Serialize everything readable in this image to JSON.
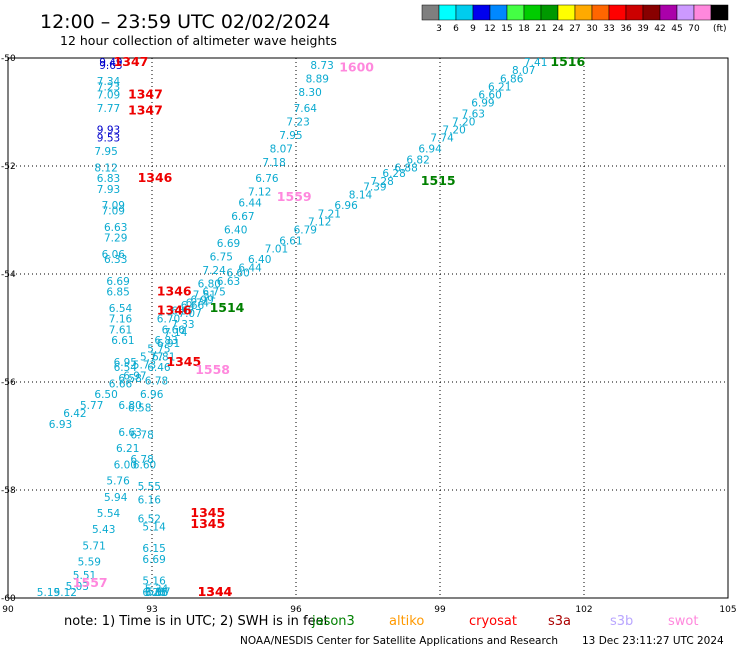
{
  "title": "12:00 – 23:59 UTC 02/02/2024",
  "subtitle": "12 hour collection of altimeter wave heights",
  "colorbar": {
    "unit": "(ft)",
    "colors": [
      "#7f7f7f",
      "#00ffff",
      "#00ccee",
      "#0000ee",
      "#0088ff",
      "#44ff44",
      "#00cc00",
      "#009900",
      "#ffff00",
      "#ffaa00",
      "#ff6600",
      "#ff0000",
      "#cc0000",
      "#880000",
      "#aa00aa",
      "#cc99ff",
      "#ff88dd",
      "#000000"
    ],
    "labels": [
      "3",
      "6",
      "9",
      "12",
      "15",
      "18",
      "21",
      "24",
      "27",
      "30",
      "33",
      "36",
      "39",
      "42",
      "45",
      "70"
    ]
  },
  "note": {
    "text": "note:  1) Time is in UTC;  2) SWH is in feet",
    "missions": [
      {
        "name": "jason3",
        "color": "#008000"
      },
      {
        "name": "altiko",
        "color": "#ff9900"
      },
      {
        "name": "cryosat",
        "color": "#ff0000"
      },
      {
        "name": "s3a",
        "color": "#aa0000"
      },
      {
        "name": "s3b",
        "color": "#b9a6ff"
      },
      {
        "name": "swot",
        "color": "#ff88dd"
      }
    ]
  },
  "footer": {
    "credit": "NOAA/NESDIS Center for Satellite Applications and Research",
    "timestamp": "13 Dec 23:11:27 UTC 2024"
  },
  "chart_data": {
    "type": "scatter",
    "xlim": [
      90,
      105
    ],
    "ylim": [
      -60,
      -50
    ],
    "x_ticks": [
      90,
      93,
      96,
      99,
      102,
      105
    ],
    "y_ticks": [
      -50,
      -52,
      -54,
      -56,
      -58,
      -60
    ],
    "grid": true,
    "tracks": [
      {
        "mission": "cryosat",
        "color": "#0aaad0",
        "labels": [
          {
            "lon": 91.9,
            "lat": -50.1,
            "text": "9.49",
            "color": "#0000cc"
          },
          {
            "lon": 91.9,
            "lat": -50.2,
            "text": "9.63",
            "color": "#0000cc"
          },
          {
            "lon": 91.85,
            "lat": -50.5,
            "text": "7.34"
          },
          {
            "lon": 91.85,
            "lat": -50.6,
            "text": "7.23"
          },
          {
            "lon": 91.85,
            "lat": -50.75,
            "text": "7.09"
          },
          {
            "lon": 91.85,
            "lat": -51.0,
            "text": "7.77"
          },
          {
            "lon": 91.85,
            "lat": -51.4,
            "text": "9.93",
            "color": "#0000cc"
          },
          {
            "lon": 91.85,
            "lat": -51.55,
            "text": "9.53",
            "color": "#0000cc"
          },
          {
            "lon": 91.8,
            "lat": -51.8,
            "text": "7.95"
          },
          {
            "lon": 91.8,
            "lat": -52.1,
            "text": "8.12"
          },
          {
            "lon": 91.85,
            "lat": -52.3,
            "text": "6.83"
          },
          {
            "lon": 91.85,
            "lat": -52.5,
            "text": "7.93"
          },
          {
            "lon": 91.95,
            "lat": -52.8,
            "text": "7.09"
          },
          {
            "lon": 91.95,
            "lat": -52.9,
            "text": "7.09"
          },
          {
            "lon": 92.0,
            "lat": -53.2,
            "text": "6.63"
          },
          {
            "lon": 92.0,
            "lat": -53.4,
            "text": "7.29"
          },
          {
            "lon": 91.95,
            "lat": -53.7,
            "text": "6.06"
          },
          {
            "lon": 92.0,
            "lat": -53.8,
            "text": "6.33"
          },
          {
            "lon": 92.05,
            "lat": -54.2,
            "text": "6.69"
          },
          {
            "lon": 92.05,
            "lat": -54.4,
            "text": "6.85"
          },
          {
            "lon": 92.1,
            "lat": -54.7,
            "text": "6.54"
          },
          {
            "lon": 92.1,
            "lat": -54.9,
            "text": "7.16"
          },
          {
            "lon": 92.1,
            "lat": -55.1,
            "text": "7.61"
          },
          {
            "lon": 92.15,
            "lat": -55.3,
            "text": "6.61"
          },
          {
            "lon": 92.2,
            "lat": -55.7,
            "text": "6.95"
          },
          {
            "lon": 92.2,
            "lat": -55.8,
            "text": "6.54"
          },
          {
            "lon": 92.3,
            "lat": -56.0,
            "text": "6.58"
          },
          {
            "lon": 92.3,
            "lat": -56.5,
            "text": "6.80"
          },
          {
            "lon": 92.3,
            "lat": -57.0,
            "text": "6.63"
          },
          {
            "lon": 92.25,
            "lat": -57.3,
            "text": "6.21"
          },
          {
            "lon": 92.2,
            "lat": -57.6,
            "text": "6.00"
          },
          {
            "lon": 92.05,
            "lat": -57.9,
            "text": "5.76"
          },
          {
            "lon": 92.0,
            "lat": -58.2,
            "text": "5.94"
          },
          {
            "lon": 91.85,
            "lat": -58.5,
            "text": "5.54"
          },
          {
            "lon": 91.75,
            "lat": -58.8,
            "text": "5.43"
          },
          {
            "lon": 91.55,
            "lat": -59.1,
            "text": "5.71"
          },
          {
            "lon": 91.45,
            "lat": -59.4,
            "text": "5.59"
          },
          {
            "lon": 91.35,
            "lat": -59.65,
            "text": "5.51"
          },
          {
            "lon": 91.2,
            "lat": -59.85,
            "text": "5.03"
          },
          {
            "lon": 90.95,
            "lat": -60.15,
            "text": "5.12"
          },
          {
            "lon": 90.6,
            "lat": -60.4,
            "text": "5.19"
          }
        ]
      },
      {
        "mission": "cryosat",
        "color": "#0aaad0",
        "labels": [
          {
            "lon": 96.3,
            "lat": -50.2,
            "text": "8.73"
          },
          {
            "lon": 96.2,
            "lat": -50.45,
            "text": "8.89"
          },
          {
            "lon": 96.05,
            "lat": -50.7,
            "text": "8.30"
          },
          {
            "lon": 95.95,
            "lat": -51.0,
            "text": "7.64"
          },
          {
            "lon": 95.8,
            "lat": -51.25,
            "text": "7.23"
          },
          {
            "lon": 95.65,
            "lat": -51.5,
            "text": "7.95"
          },
          {
            "lon": 95.45,
            "lat": -51.75,
            "text": "8.07"
          },
          {
            "lon": 95.3,
            "lat": -52.0,
            "text": "7.18"
          },
          {
            "lon": 95.15,
            "lat": -52.3,
            "text": "6.76"
          },
          {
            "lon": 95.0,
            "lat": -52.55,
            "text": "7.12"
          },
          {
            "lon": 94.8,
            "lat": -52.75,
            "text": "6.44"
          },
          {
            "lon": 94.65,
            "lat": -53.0,
            "text": "6.67"
          },
          {
            "lon": 94.5,
            "lat": -53.25,
            "text": "6.40"
          },
          {
            "lon": 94.35,
            "lat": -53.5,
            "text": "6.69"
          },
          {
            "lon": 94.2,
            "lat": -53.75,
            "text": "6.75"
          },
          {
            "lon": 94.05,
            "lat": -54.0,
            "text": "7.24"
          },
          {
            "lon": 93.95,
            "lat": -54.25,
            "text": "6.80"
          },
          {
            "lon": 93.85,
            "lat": -54.45,
            "text": "7.51"
          },
          {
            "lon": 93.7,
            "lat": -54.6,
            "text": "6.74"
          },
          {
            "lon": 93.55,
            "lat": -54.8,
            "text": "7.07"
          },
          {
            "lon": 93.4,
            "lat": -55.0,
            "text": "7.33"
          },
          {
            "lon": 93.25,
            "lat": -55.15,
            "text": "7.14"
          },
          {
            "lon": 93.05,
            "lat": -55.3,
            "text": "6.83"
          },
          {
            "lon": 92.9,
            "lat": -55.45,
            "text": "5.75"
          },
          {
            "lon": 92.75,
            "lat": -55.6,
            "text": "5.77"
          },
          {
            "lon": 92.6,
            "lat": -55.75,
            "text": "5.73"
          },
          {
            "lon": 92.4,
            "lat": -55.95,
            "text": "6.97"
          },
          {
            "lon": 92.1,
            "lat": -56.1,
            "text": "6.66"
          },
          {
            "lon": 91.8,
            "lat": -56.3,
            "text": "6.50"
          },
          {
            "lon": 91.5,
            "lat": -56.5,
            "text": "5.77"
          },
          {
            "lon": 91.15,
            "lat": -56.65,
            "text": "6.42"
          },
          {
            "lon": 90.85,
            "lat": -56.85,
            "text": "6.93"
          }
        ]
      },
      {
        "mission": "cryosat",
        "color": "#0aaad0",
        "labels": [
          {
            "lon": 100.75,
            "lat": -50.15,
            "text": "7.41"
          },
          {
            "lon": 100.5,
            "lat": -50.3,
            "text": "8.07"
          },
          {
            "lon": 100.25,
            "lat": -50.45,
            "text": "6.86"
          },
          {
            "lon": 100.0,
            "lat": -50.6,
            "text": "6.21"
          },
          {
            "lon": 99.8,
            "lat": -50.75,
            "text": "6.60"
          },
          {
            "lon": 99.65,
            "lat": -50.9,
            "text": "6.99"
          },
          {
            "lon": 99.45,
            "lat": -51.1,
            "text": "7.63"
          },
          {
            "lon": 99.25,
            "lat": -51.25,
            "text": "7.20"
          },
          {
            "lon": 99.05,
            "lat": -51.4,
            "text": "7.20"
          },
          {
            "lon": 98.8,
            "lat": -51.55,
            "text": "7.74"
          },
          {
            "lon": 98.55,
            "lat": -51.75,
            "text": "6.94"
          },
          {
            "lon": 98.3,
            "lat": -51.95,
            "text": "6.82"
          },
          {
            "lon": 98.05,
            "lat": -52.1,
            "text": "6.88"
          },
          {
            "lon": 97.8,
            "lat": -52.2,
            "text": "6.28"
          },
          {
            "lon": 97.55,
            "lat": -52.35,
            "text": "7.28"
          },
          {
            "lon": 97.4,
            "lat": -52.45,
            "text": "7.39"
          },
          {
            "lon": 97.1,
            "lat": -52.6,
            "text": "8.14"
          },
          {
            "lon": 96.8,
            "lat": -52.8,
            "text": "6.96"
          },
          {
            "lon": 96.45,
            "lat": -52.95,
            "text": "7.21"
          },
          {
            "lon": 96.25,
            "lat": -53.1,
            "text": "7.12"
          },
          {
            "lon": 95.95,
            "lat": -53.25,
            "text": "6.79"
          },
          {
            "lon": 95.65,
            "lat": -53.45,
            "text": "6.61"
          },
          {
            "lon": 95.35,
            "lat": -53.6,
            "text": "7.01"
          },
          {
            "lon": 95.0,
            "lat": -53.8,
            "text": "6.40"
          },
          {
            "lon": 94.8,
            "lat": -53.95,
            "text": "6.44"
          },
          {
            "lon": 94.55,
            "lat": -54.05,
            "text": "6.60"
          },
          {
            "lon": 94.35,
            "lat": -54.2,
            "text": "6.63"
          },
          {
            "lon": 94.05,
            "lat": -54.4,
            "text": "6.75"
          },
          {
            "lon": 93.8,
            "lat": -54.55,
            "text": "6.99"
          },
          {
            "lon": 93.6,
            "lat": -54.65,
            "text": "6.66"
          },
          {
            "lon": 93.4,
            "lat": -54.75,
            "text": "6.97"
          },
          {
            "lon": 93.1,
            "lat": -54.9,
            "text": "6.70"
          },
          {
            "lon": 93.2,
            "lat": -55.1,
            "text": "6.66"
          },
          {
            "lon": 93.1,
            "lat": -55.35,
            "text": "6.91"
          },
          {
            "lon": 93.0,
            "lat": -55.6,
            "text": "6.81"
          },
          {
            "lon": 92.9,
            "lat": -55.8,
            "text": "6.46"
          },
          {
            "lon": 92.85,
            "lat": -56.05,
            "text": "6.78"
          },
          {
            "lon": 92.75,
            "lat": -56.3,
            "text": "6.96"
          },
          {
            "lon": 92.5,
            "lat": -56.55,
            "text": "6.58"
          },
          {
            "lon": 92.55,
            "lat": -57.05,
            "text": "6.78"
          },
          {
            "lon": 92.55,
            "lat": -57.5,
            "text": "6.78"
          },
          {
            "lon": 92.6,
            "lat": -57.6,
            "text": "6.60"
          },
          {
            "lon": 92.7,
            "lat": -58.0,
            "text": "5.55"
          },
          {
            "lon": 92.7,
            "lat": -58.25,
            "text": "6.16"
          },
          {
            "lon": 92.7,
            "lat": -58.6,
            "text": "6.52"
          },
          {
            "lon": 92.8,
            "lat": -58.75,
            "text": "5.14"
          },
          {
            "lon": 92.8,
            "lat": -59.15,
            "text": "6.15"
          },
          {
            "lon": 92.8,
            "lat": -59.35,
            "text": "6.69"
          },
          {
            "lon": 92.8,
            "lat": -59.75,
            "text": "5.16"
          },
          {
            "lon": 92.85,
            "lat": -59.9,
            "text": "5.34"
          },
          {
            "lon": 92.9,
            "lat": -59.95,
            "text": "5.67"
          },
          {
            "lon": 92.85,
            "lat": -60.3,
            "text": "5.66"
          },
          {
            "lon": 92.85,
            "lat": -60.5,
            "text": "6.15"
          },
          {
            "lon": 92.8,
            "lat": -60.85,
            "text": "6.26"
          }
        ]
      }
    ],
    "time_labels": [
      {
        "lon": 92.2,
        "lat": -50.1,
        "text": "1347",
        "color": "#ee0000"
      },
      {
        "lon": 92.5,
        "lat": -50.75,
        "text": "1347",
        "color": "#ee0000"
      },
      {
        "lon": 92.5,
        "lat": -51.05,
        "text": "1347",
        "color": "#ee0000"
      },
      {
        "lon": 92.7,
        "lat": -52.3,
        "text": "1346",
        "color": "#ee0000"
      },
      {
        "lon": 93.1,
        "lat": -54.4,
        "text": "1346",
        "color": "#ee0000"
      },
      {
        "lon": 93.1,
        "lat": -54.75,
        "text": "1346",
        "color": "#ee0000"
      },
      {
        "lon": 93.3,
        "lat": -55.7,
        "text": "1345",
        "color": "#ee0000"
      },
      {
        "lon": 93.8,
        "lat": -58.5,
        "text": "1345",
        "color": "#ee0000"
      },
      {
        "lon": 93.8,
        "lat": -58.7,
        "text": "1345",
        "color": "#ee0000"
      },
      {
        "lon": 93.95,
        "lat": -60.35,
        "text": "1344",
        "color": "#ee0000"
      },
      {
        "lon": 93.95,
        "lat": -60.8,
        "text": "1344",
        "color": "#ee0000"
      },
      {
        "lon": 96.9,
        "lat": -50.25,
        "text": "1600",
        "color": "#ff88dd"
      },
      {
        "lon": 95.6,
        "lat": -52.65,
        "text": "1559",
        "color": "#ff88dd"
      },
      {
        "lon": 93.9,
        "lat": -55.85,
        "text": "1558",
        "color": "#ff88dd"
      },
      {
        "lon": 91.35,
        "lat": -59.8,
        "text": "1557",
        "color": "#ff88dd"
      },
      {
        "lon": 101.3,
        "lat": -50.1,
        "text": "1516",
        "color": "#008000"
      },
      {
        "lon": 98.6,
        "lat": -52.35,
        "text": "1515",
        "color": "#008000"
      },
      {
        "lon": 94.2,
        "lat": -54.7,
        "text": "1514",
        "color": "#008000"
      }
    ]
  }
}
